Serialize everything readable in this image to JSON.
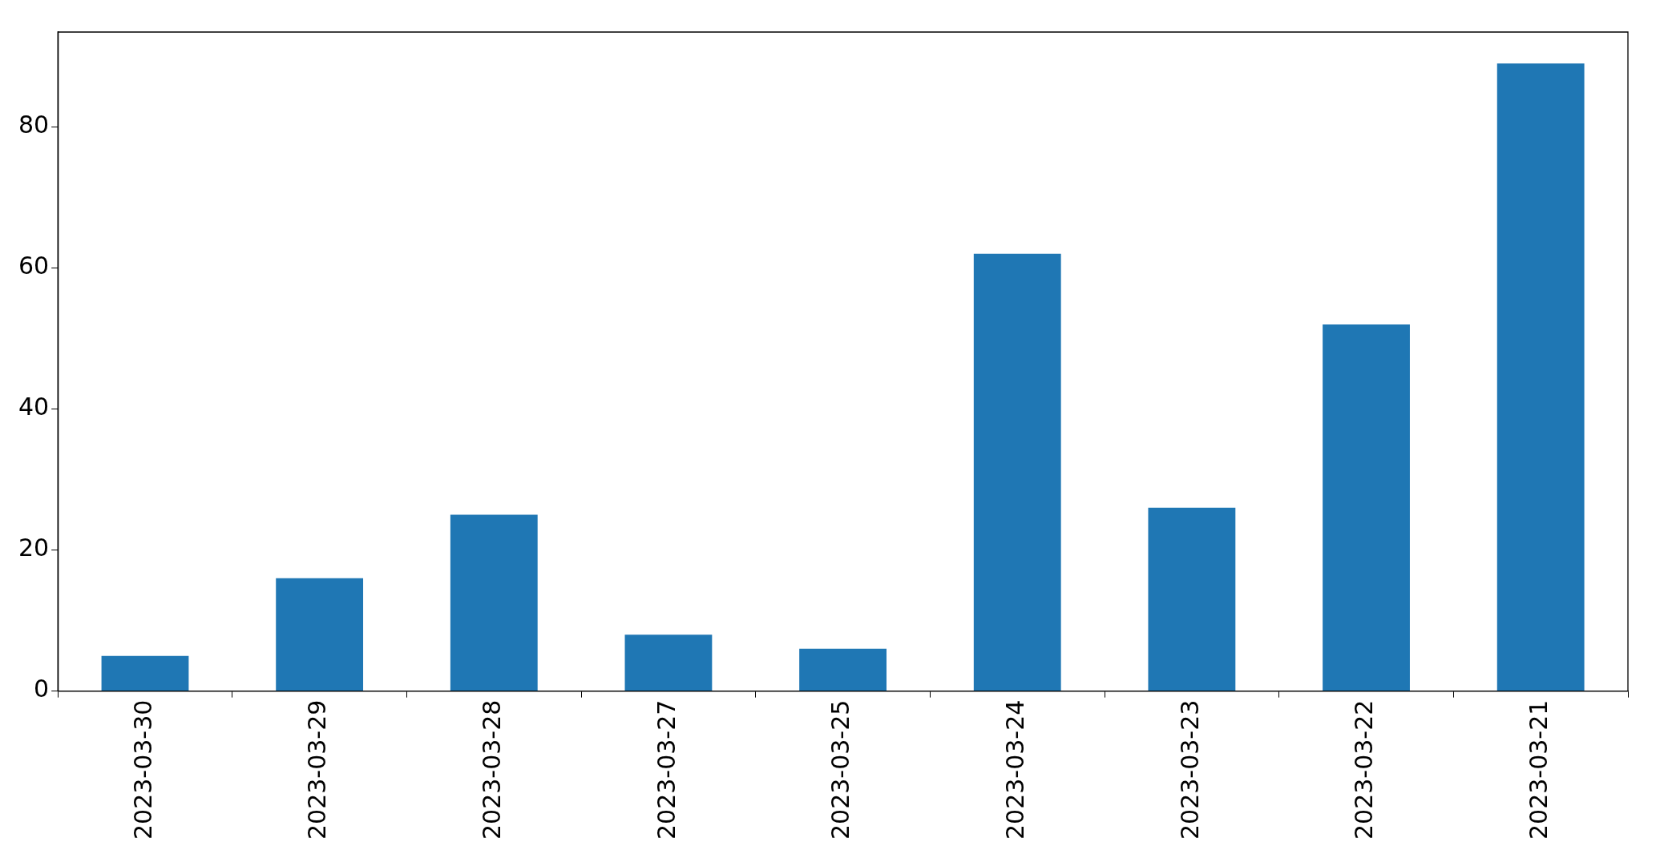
{
  "chart_data": {
    "type": "bar",
    "categories": [
      "2023-03-30",
      "2023-03-29",
      "2023-03-28",
      "2023-03-27",
      "2023-03-25",
      "2023-03-24",
      "2023-03-23",
      "2023-03-22",
      "2023-03-21"
    ],
    "values": [
      5,
      16,
      25,
      8,
      6,
      62,
      26,
      52,
      89
    ],
    "color": "#1f77b4",
    "ylim": [
      0,
      93.45
    ],
    "yticks": [
      0,
      20,
      40,
      60,
      80
    ],
    "grid": false,
    "legend": false
  }
}
